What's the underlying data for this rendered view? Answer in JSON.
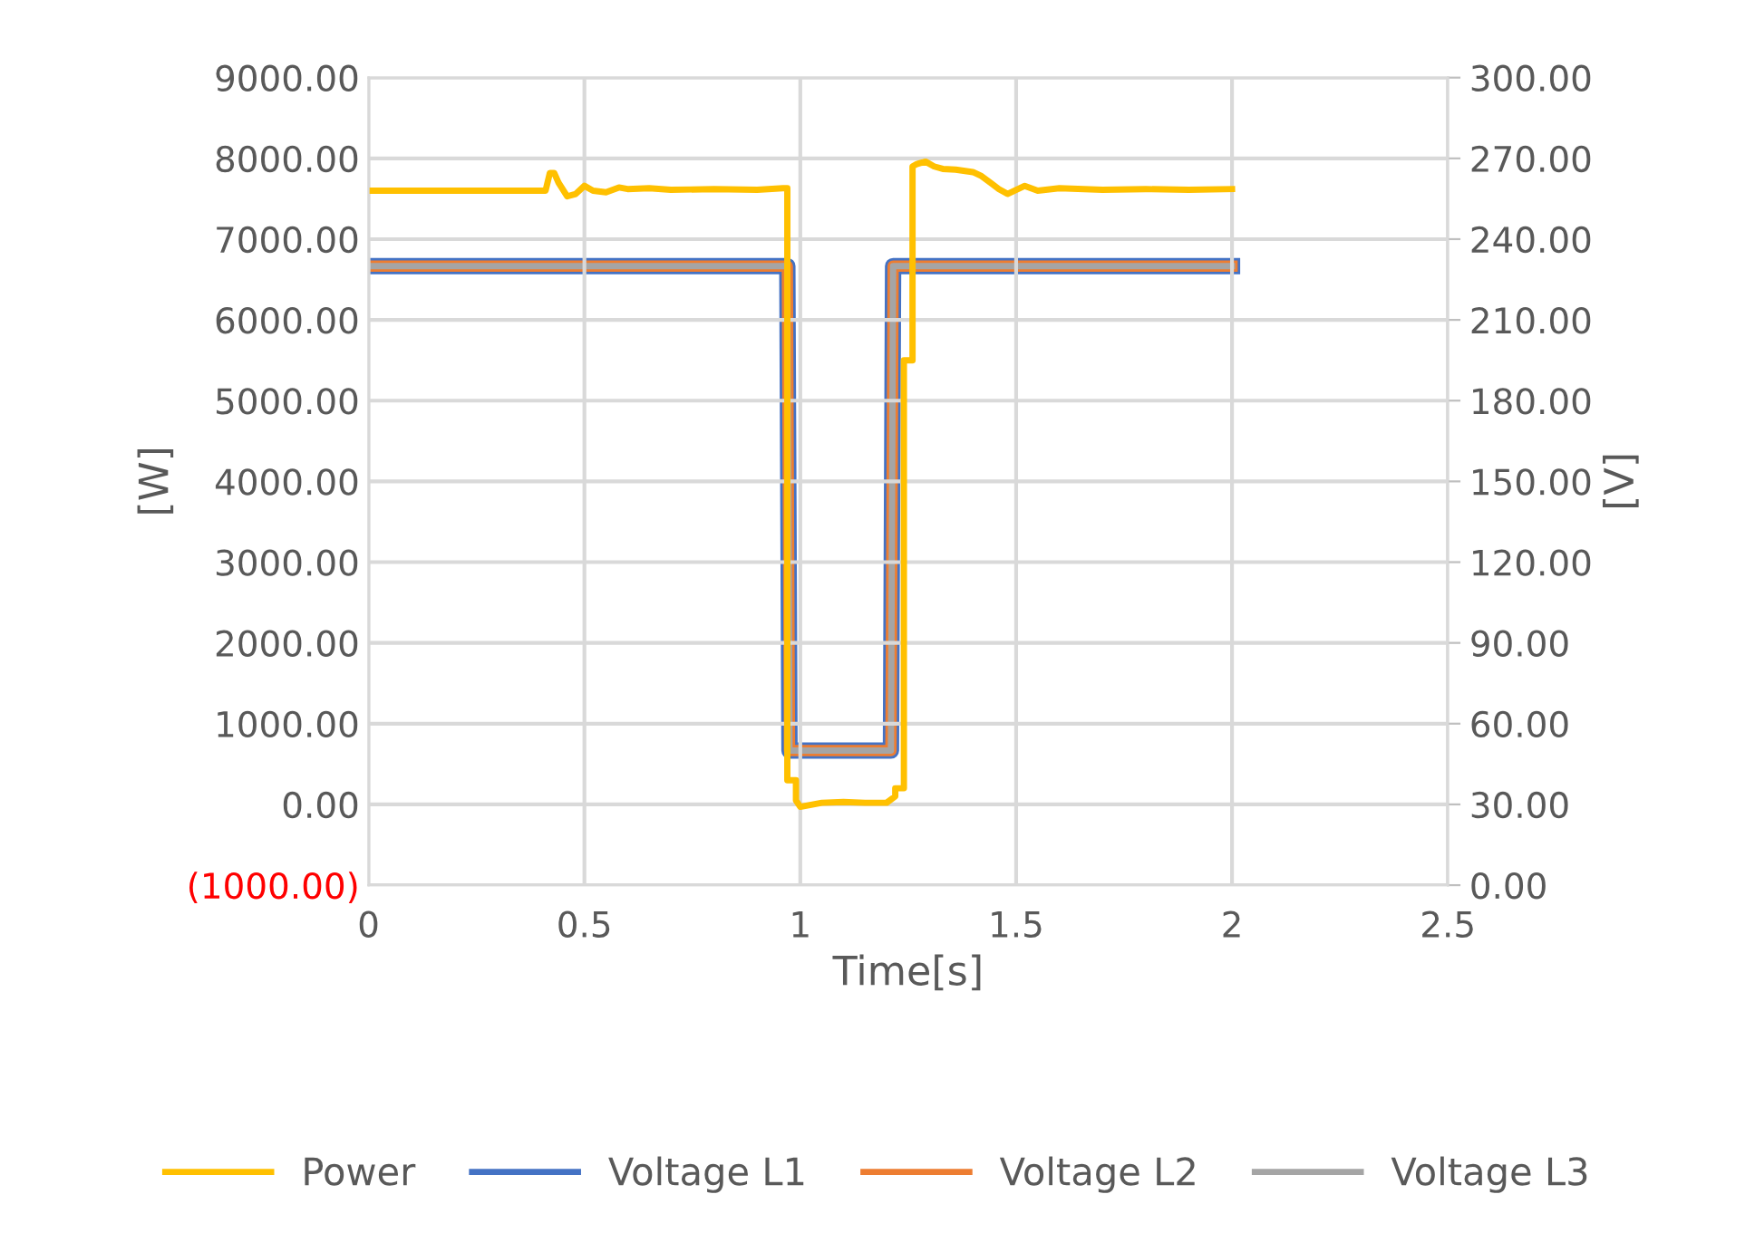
{
  "chart_data": {
    "type": "line",
    "xlabel": "Time[s]",
    "ylabel": "[W]",
    "y2label": "[V]",
    "xlim": [
      0,
      2.5
    ],
    "xticks": [
      0,
      0.5,
      1,
      1.5,
      2,
      2.5
    ],
    "ylim": [
      -1000,
      9000
    ],
    "yticks": [
      {
        "value": -1000,
        "label": "(1000.00)"
      },
      {
        "value": 0,
        "label": "0.00"
      },
      {
        "value": 1000,
        "label": "1000.00"
      },
      {
        "value": 2000,
        "label": "2000.00"
      },
      {
        "value": 3000,
        "label": "3000.00"
      },
      {
        "value": 4000,
        "label": "4000.00"
      },
      {
        "value": 5000,
        "label": "5000.00"
      },
      {
        "value": 6000,
        "label": "6000.00"
      },
      {
        "value": 7000,
        "label": "7000.00"
      },
      {
        "value": 8000,
        "label": "8000.00"
      },
      {
        "value": 9000,
        "label": "9000.00"
      }
    ],
    "y2lim": [
      0,
      300
    ],
    "y2ticks": [
      {
        "value": 0,
        "label": "0.00"
      },
      {
        "value": 30,
        "label": "30.00"
      },
      {
        "value": 60,
        "label": "60.00"
      },
      {
        "value": 90,
        "label": "90.00"
      },
      {
        "value": 120,
        "label": "120.00"
      },
      {
        "value": 150,
        "label": "150.00"
      },
      {
        "value": 180,
        "label": "180.00"
      },
      {
        "value": 210,
        "label": "210.00"
      },
      {
        "value": 240,
        "label": "240.00"
      },
      {
        "value": 270,
        "label": "270.00"
      },
      {
        "value": 300,
        "label": "300.00"
      }
    ],
    "grid": true,
    "legend": "bottom",
    "marker": "none",
    "line_style": "solid",
    "series": [
      {
        "name": "Power",
        "color": "#ffc000",
        "x": [
          0,
          0.2,
          0.41,
          0.42,
          0.43,
          0.44,
          0.46,
          0.48,
          0.5,
          0.52,
          0.55,
          0.58,
          0.6,
          0.65,
          0.7,
          0.8,
          0.9,
          0.96,
          0.97,
          0.97,
          0.99,
          0.99,
          1.0,
          1.05,
          1.1,
          1.15,
          1.2,
          1.22,
          1.22,
          1.24,
          1.24,
          1.26,
          1.26,
          1.27,
          1.29,
          1.31,
          1.33,
          1.36,
          1.4,
          1.42,
          1.44,
          1.46,
          1.48,
          1.5,
          1.52,
          1.55,
          1.6,
          1.7,
          1.8,
          1.9,
          2.0
        ],
        "values": [
          7600,
          7600,
          7600,
          7820,
          7820,
          7700,
          7530,
          7560,
          7660,
          7600,
          7580,
          7640,
          7620,
          7630,
          7610,
          7620,
          7610,
          7630,
          7630,
          300,
          300,
          50,
          -30,
          20,
          30,
          20,
          20,
          100,
          200,
          200,
          5500,
          5500,
          7900,
          7930,
          7960,
          7900,
          7870,
          7860,
          7830,
          7780,
          7700,
          7620,
          7560,
          7610,
          7660,
          7600,
          7630,
          7610,
          7620,
          7610,
          7620
        ]
      },
      {
        "name": "Voltage L1",
        "color": "#4472c4",
        "axis": "y2",
        "x": [
          0,
          0.97,
          0.975,
          1.21,
          1.215,
          2.0
        ],
        "values": [
          230,
          230,
          50,
          50,
          230,
          230
        ]
      },
      {
        "name": "Voltage L2",
        "color": "#ed7d31",
        "axis": "y2",
        "x": [
          0,
          0.97,
          0.975,
          1.21,
          1.215,
          2.0
        ],
        "values": [
          230,
          230,
          50,
          50,
          230,
          230
        ]
      },
      {
        "name": "Voltage L3",
        "color": "#a5a5a5",
        "axis": "y2",
        "x": [
          0,
          0.97,
          0.975,
          1.21,
          1.215,
          2.0
        ],
        "values": [
          230,
          230,
          50,
          50,
          230,
          230
        ]
      }
    ]
  }
}
